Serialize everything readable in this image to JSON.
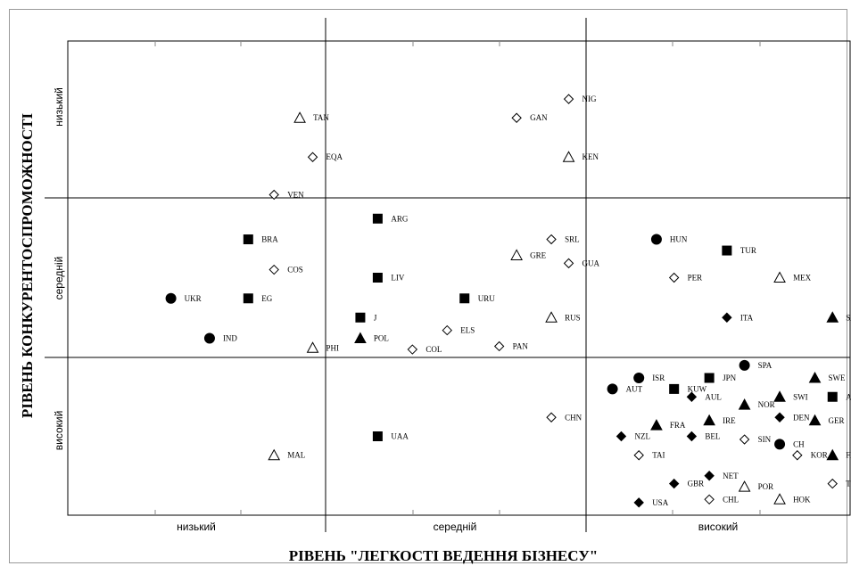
{
  "chart_data": {
    "type": "scatter",
    "xlabel": "РІВЕНЬ \"ЛЕГКОСТІ ВЕДЕННЯ БІЗНЕСУ\"",
    "ylabel": "РІВЕНЬ КОНКУРЕНТОСПРОМОЖНОСТІ",
    "x_categories": [
      "низький",
      "середній",
      "високий"
    ],
    "y_categories": [
      "низький",
      "середній",
      "високий"
    ],
    "points": [
      {
        "label": "TAN",
        "x": 1.8,
        "y": 0.49,
        "marker": "triangle-open"
      },
      {
        "label": "EQA",
        "x": 1.9,
        "y": 0.74,
        "marker": "diamond-open"
      },
      {
        "label": "VEN",
        "x": 1.6,
        "y": 0.98,
        "marker": "diamond-open"
      },
      {
        "label": "BRA",
        "x": 1.4,
        "y": 1.26,
        "marker": "square"
      },
      {
        "label": "COS",
        "x": 1.6,
        "y": 1.45,
        "marker": "diamond-open"
      },
      {
        "label": "UKR",
        "x": 0.8,
        "y": 1.63,
        "marker": "circle"
      },
      {
        "label": "EG",
        "x": 1.4,
        "y": 1.63,
        "marker": "square"
      },
      {
        "label": "IND",
        "x": 1.1,
        "y": 1.88,
        "marker": "circle"
      },
      {
        "label": "PHI",
        "x": 1.9,
        "y": 1.94,
        "marker": "triangle-open"
      },
      {
        "label": "NIG",
        "x": 3.4,
        "y": 0.37,
        "marker": "diamond-open"
      },
      {
        "label": "GAN",
        "x": 3.1,
        "y": 0.49,
        "marker": "diamond-open"
      },
      {
        "label": "KEN",
        "x": 3.4,
        "y": 0.74,
        "marker": "triangle-open"
      },
      {
        "label": "ARG",
        "x": 2.3,
        "y": 1.13,
        "marker": "square"
      },
      {
        "label": "SRL",
        "x": 3.3,
        "y": 1.26,
        "marker": "diamond-open"
      },
      {
        "label": "GRE",
        "x": 3.1,
        "y": 1.36,
        "marker": "triangle-open"
      },
      {
        "label": "GUA",
        "x": 3.4,
        "y": 1.41,
        "marker": "diamond-open"
      },
      {
        "label": "LIV",
        "x": 2.3,
        "y": 1.5,
        "marker": "square"
      },
      {
        "label": "URU",
        "x": 2.8,
        "y": 1.63,
        "marker": "square"
      },
      {
        "label": "J",
        "x": 2.2,
        "y": 1.75,
        "marker": "square"
      },
      {
        "label": "RUS",
        "x": 3.3,
        "y": 1.75,
        "marker": "triangle-open"
      },
      {
        "label": "ELS",
        "x": 2.7,
        "y": 1.83,
        "marker": "diamond-open"
      },
      {
        "label": "POL",
        "x": 2.2,
        "y": 1.88,
        "marker": "triangle"
      },
      {
        "label": "PAN",
        "x": 3.0,
        "y": 1.93,
        "marker": "diamond-open"
      },
      {
        "label": "COL",
        "x": 2.5,
        "y": 1.95,
        "marker": "diamond-open"
      },
      {
        "label": "HUN",
        "x": 3.9,
        "y": 1.26,
        "marker": "circle"
      },
      {
        "label": "TUR",
        "x": 4.3,
        "y": 1.33,
        "marker": "square"
      },
      {
        "label": "PER",
        "x": 4.0,
        "y": 1.5,
        "marker": "diamond-open"
      },
      {
        "label": "MEX",
        "x": 4.6,
        "y": 1.5,
        "marker": "triangle-open"
      },
      {
        "label": "ITA",
        "x": 4.3,
        "y": 1.75,
        "marker": "diamond"
      },
      {
        "label": "SAF",
        "x": 4.9,
        "y": 1.75,
        "marker": "triangle"
      },
      {
        "label": "SPA",
        "x": 4.4,
        "y": 2.05,
        "marker": "circle"
      },
      {
        "label": "ISR",
        "x": 3.8,
        "y": 2.13,
        "marker": "circle"
      },
      {
        "label": "JPN",
        "x": 4.2,
        "y": 2.13,
        "marker": "square"
      },
      {
        "label": "SWE",
        "x": 4.8,
        "y": 2.13,
        "marker": "triangle"
      },
      {
        "label": "AUT",
        "x": 3.65,
        "y": 2.2,
        "marker": "circle"
      },
      {
        "label": "KUW",
        "x": 4.0,
        "y": 2.2,
        "marker": "square"
      },
      {
        "label": "AUL",
        "x": 4.1,
        "y": 2.25,
        "marker": "diamond"
      },
      {
        "label": "SWI",
        "x": 4.6,
        "y": 2.25,
        "marker": "triangle"
      },
      {
        "label": "ARA",
        "x": 4.9,
        "y": 2.25,
        "marker": "square"
      },
      {
        "label": "NOR",
        "x": 4.4,
        "y": 2.3,
        "marker": "triangle"
      },
      {
        "label": "DEN",
        "x": 4.6,
        "y": 2.38,
        "marker": "diamond"
      },
      {
        "label": "GER",
        "x": 4.8,
        "y": 2.4,
        "marker": "triangle"
      },
      {
        "label": "IRE",
        "x": 4.2,
        "y": 2.4,
        "marker": "triangle"
      },
      {
        "label": "FRA",
        "x": 3.9,
        "y": 2.43,
        "marker": "triangle"
      },
      {
        "label": "NZL",
        "x": 3.7,
        "y": 2.5,
        "marker": "diamond"
      },
      {
        "label": "BEL",
        "x": 4.1,
        "y": 2.5,
        "marker": "diamond"
      },
      {
        "label": "SIN",
        "x": 4.4,
        "y": 2.52,
        "marker": "diamond-open"
      },
      {
        "label": "CH",
        "x": 4.6,
        "y": 2.55,
        "marker": "circle"
      },
      {
        "label": "TAI",
        "x": 3.8,
        "y": 2.62,
        "marker": "diamond-open"
      },
      {
        "label": "KOR",
        "x": 4.7,
        "y": 2.62,
        "marker": "diamond-open"
      },
      {
        "label": "FIN",
        "x": 4.9,
        "y": 2.62,
        "marker": "triangle"
      },
      {
        "label": "NET",
        "x": 4.2,
        "y": 2.75,
        "marker": "diamond"
      },
      {
        "label": "GBR",
        "x": 4.0,
        "y": 2.8,
        "marker": "diamond"
      },
      {
        "label": "POR",
        "x": 4.4,
        "y": 2.82,
        "marker": "triangle-open"
      },
      {
        "label": "THA",
        "x": 4.9,
        "y": 2.8,
        "marker": "diamond-open"
      },
      {
        "label": "CHL",
        "x": 4.2,
        "y": 2.9,
        "marker": "diamond-open"
      },
      {
        "label": "HOK",
        "x": 4.6,
        "y": 2.9,
        "marker": "triangle-open"
      },
      {
        "label": "USA",
        "x": 3.8,
        "y": 2.92,
        "marker": "diamond"
      },
      {
        "label": "UAA",
        "x": 2.3,
        "y": 2.5,
        "marker": "square"
      },
      {
        "label": "CHN",
        "x": 3.3,
        "y": 2.38,
        "marker": "diamond-open"
      },
      {
        "label": "MAL",
        "x": 1.6,
        "y": 2.62,
        "marker": "triangle-open"
      }
    ]
  }
}
